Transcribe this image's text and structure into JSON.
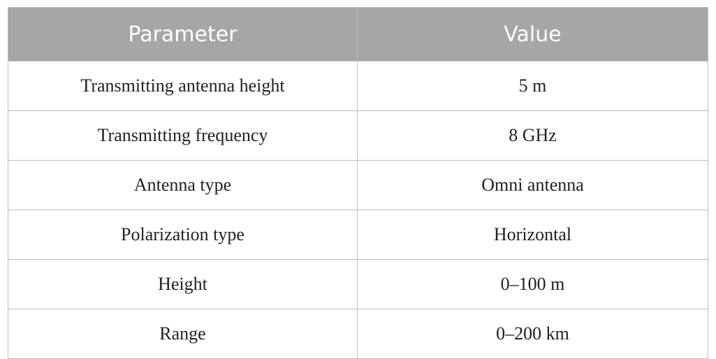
{
  "table": {
    "header": [
      "Parameter",
      "Value"
    ],
    "rows": [
      [
        "Transmitting antenna height",
        "5 m"
      ],
      [
        "Transmitting frequency",
        "8 GHz"
      ],
      [
        "Antenna type",
        "Omni antenna"
      ],
      [
        "Polarization type",
        "Horizontal"
      ],
      [
        "Height",
        "0–100 m"
      ],
      [
        "Range",
        "0–200 km"
      ]
    ]
  }
}
